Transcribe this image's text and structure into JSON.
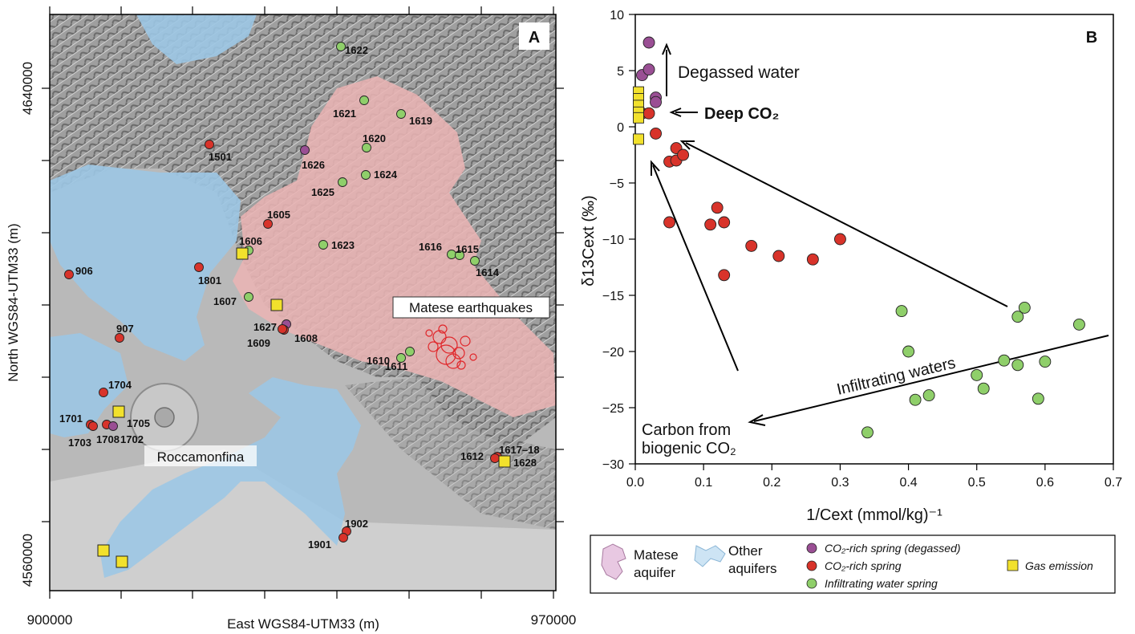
{
  "map": {
    "panel_label": "A",
    "x_axis_title": "East WGS84-UTM33 (m)",
    "y_axis_title": "North WGS84-UTM33 (m)",
    "x_ticks": [
      "900000",
      "970000"
    ],
    "y_ticks": [
      "4640000",
      "4560000"
    ],
    "area_labels": {
      "roccamonfina": "Roccamonfina",
      "earthquakes": "Matese earthquakes"
    },
    "colors": {
      "matese": "#e9b4b4",
      "other": "#9cc7e4",
      "degassed": "#9a4f94",
      "co2": "#d8332a",
      "infiltrating": "#8fcf6a",
      "gas": "#f2e12c"
    },
    "sites": [
      {
        "id": "1622",
        "type": "infiltrating"
      },
      {
        "id": "1621",
        "type": "infiltrating"
      },
      {
        "id": "1619",
        "type": "infiltrating"
      },
      {
        "id": "1620",
        "type": "infiltrating"
      },
      {
        "id": "1626",
        "type": "degassed"
      },
      {
        "id": "1624",
        "type": "infiltrating"
      },
      {
        "id": "1625",
        "type": "infiltrating"
      },
      {
        "id": "1501",
        "type": "co2"
      },
      {
        "id": "1605",
        "type": "co2"
      },
      {
        "id": "1606",
        "type": "infiltrating"
      },
      {
        "id": "1623",
        "type": "infiltrating"
      },
      {
        "id": "1616",
        "type": "infiltrating"
      },
      {
        "id": "1615",
        "type": "infiltrating"
      },
      {
        "id": "1614",
        "type": "infiltrating"
      },
      {
        "id": "906",
        "type": "co2"
      },
      {
        "id": "1801",
        "type": "co2"
      },
      {
        "id": "1607",
        "type": "infiltrating"
      },
      {
        "id": "1627",
        "type": "degassed"
      },
      {
        "id": "1608",
        "type": "co2"
      },
      {
        "id": "1609",
        "type": "co2"
      },
      {
        "id": "907",
        "type": "co2"
      },
      {
        "id": "1610",
        "type": "infiltrating"
      },
      {
        "id": "1611",
        "type": "infiltrating"
      },
      {
        "id": "1704",
        "type": "co2"
      },
      {
        "id": "1705",
        "type": "co2"
      },
      {
        "id": "1701",
        "type": "co2"
      },
      {
        "id": "1703",
        "type": "co2"
      },
      {
        "id": "1708",
        "type": "co2"
      },
      {
        "id": "1702",
        "type": "degassed"
      },
      {
        "id": "1617–18",
        "type": "co2"
      },
      {
        "id": "1612",
        "type": "co2"
      },
      {
        "id": "1628",
        "type": "gas"
      },
      {
        "id": "1902",
        "type": "co2"
      },
      {
        "id": "1901",
        "type": "co2"
      }
    ]
  },
  "chart_data": {
    "type": "scatter",
    "panel_label": "B",
    "xlabel": "1/Cext (mmol/kg)⁻¹",
    "ylabel": "δ13Cext (‰)",
    "xlim": [
      0,
      0.7
    ],
    "ylim": [
      -30,
      10
    ],
    "x_ticks": [
      "0.0",
      "0.1",
      "0.2",
      "0.3",
      "0.4",
      "0.5",
      "0.6",
      "0.7"
    ],
    "y_ticks": [
      "10",
      "5",
      "0",
      "−5",
      "−10",
      "−15",
      "−20",
      "−25",
      "−30"
    ],
    "annotations": {
      "degassed": "Degassed water",
      "deep": "Deep CO₂",
      "infiltrating": "Infiltrating waters",
      "biogenic_1": "Carbon from",
      "biogenic_2": "biogenic CO₂"
    },
    "series": [
      {
        "name": "CO2-rich spring (degassed)",
        "color": "#9a4f94",
        "points": [
          [
            0.01,
            4.6
          ],
          [
            0.02,
            5.1
          ],
          [
            0.02,
            7.5
          ],
          [
            0.03,
            2.6
          ],
          [
            0.03,
            2.2
          ]
        ]
      },
      {
        "name": "CO2-rich spring",
        "color": "#d8332a",
        "points": [
          [
            0.01,
            1.2
          ],
          [
            0.02,
            1.2
          ],
          [
            0.03,
            -0.6
          ],
          [
            0.05,
            -3.1
          ],
          [
            0.06,
            -3.0
          ],
          [
            0.06,
            -1.9
          ],
          [
            0.07,
            -2.5
          ],
          [
            0.05,
            -8.5
          ],
          [
            0.11,
            -8.7
          ],
          [
            0.12,
            -7.2
          ],
          [
            0.13,
            -8.5
          ],
          [
            0.13,
            -13.2
          ],
          [
            0.17,
            -10.6
          ],
          [
            0.21,
            -11.5
          ],
          [
            0.26,
            -11.8
          ],
          [
            0.3,
            -10.0
          ]
        ]
      },
      {
        "name": "Infiltrating water spring",
        "color": "#8fcf6a",
        "points": [
          [
            0.34,
            -27.2
          ],
          [
            0.39,
            -16.4
          ],
          [
            0.4,
            -20.0
          ],
          [
            0.41,
            -24.3
          ],
          [
            0.43,
            -23.9
          ],
          [
            0.5,
            -22.1
          ],
          [
            0.51,
            -23.3
          ],
          [
            0.54,
            -20.8
          ],
          [
            0.56,
            -21.2
          ],
          [
            0.56,
            -16.9
          ],
          [
            0.57,
            -16.1
          ],
          [
            0.59,
            -24.2
          ],
          [
            0.6,
            -20.9
          ],
          [
            0.65,
            -17.6
          ]
        ]
      },
      {
        "name": "Gas emission",
        "color": "#f2e12c",
        "points": [
          [
            0.0,
            3.1
          ],
          [
            0.0,
            2.5
          ],
          [
            0.0,
            1.9
          ],
          [
            0.0,
            1.3
          ],
          [
            0.0,
            0.8
          ],
          [
            0.0,
            -1.1
          ]
        ]
      }
    ]
  },
  "legend": {
    "matese_1": "Matese",
    "matese_2": "aquifer",
    "other_1": "Other",
    "other_2": "aquifers",
    "degassed": "CO₂-rich spring (degassed)",
    "co2": "CO₂-rich spring",
    "infiltrating": "Infiltrating water spring",
    "gas": "Gas emission"
  }
}
